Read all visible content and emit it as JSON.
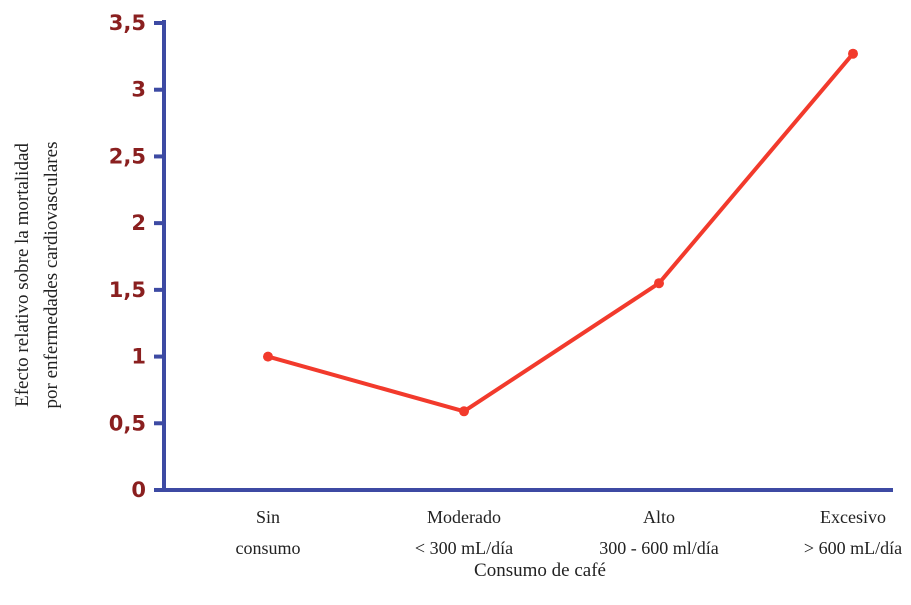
{
  "chart_data": {
    "type": "line",
    "categories": [
      [
        "Sin",
        "consumo"
      ],
      [
        "Moderado",
        "< 300 mL/día"
      ],
      [
        "Alto",
        "300 - 600 ml/día"
      ],
      [
        "Excesivo",
        "> 600 mL/día"
      ]
    ],
    "series": [
      {
        "values": [
          1.0,
          0.59,
          1.55,
          3.27
        ]
      }
    ],
    "ylabel_lines": [
      "Efecto relativo sobre la mortalidad",
      "por enfermedades cardiovasculares"
    ],
    "xlabel": "Consumo de café",
    "ylim": [
      0,
      3.5
    ],
    "yticks": [
      "0",
      "0,5",
      "1",
      "1,5",
      "2",
      "2,5",
      "3",
      "3,5"
    ],
    "grid": false,
    "colors": {
      "line": "#f23a2c",
      "axis": "#3d4aa3",
      "ytick_text": "#8a1f1f"
    }
  }
}
